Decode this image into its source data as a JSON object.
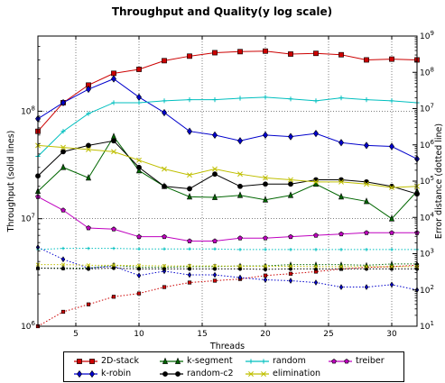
{
  "chart_data": {
    "type": "line",
    "title": "Throughput and Quality(y log scale)",
    "xlabel": "Threads",
    "ylabel_left": "Throughput (solid lines)",
    "ylabel_right": "Error distance (dotted line)",
    "xlim": [
      2,
      32
    ],
    "xticks": [
      "5",
      "10",
      "15",
      "20",
      "25",
      "30"
    ],
    "ylim_left": [
      1000000,
      500000000
    ],
    "ylim_right": [
      10,
      1000000000
    ],
    "yscale": "log",
    "left_ticks": [
      {
        "value": 1000000,
        "base": "10",
        "exp": "6"
      },
      {
        "value": 10000000,
        "base": "10",
        "exp": "7"
      },
      {
        "value": 100000000,
        "base": "10",
        "exp": "8"
      }
    ],
    "right_ticks": [
      {
        "value": 10,
        "base": "10",
        "exp": "1"
      },
      {
        "value": 100,
        "base": "10",
        "exp": "2"
      },
      {
        "value": 1000,
        "base": "10",
        "exp": "3"
      },
      {
        "value": 10000,
        "base": "10",
        "exp": "4"
      },
      {
        "value": 100000,
        "base": "10",
        "exp": "5"
      },
      {
        "value": 1000000,
        "base": "10",
        "exp": "6"
      },
      {
        "value": 10000000,
        "base": "10",
        "exp": "7"
      },
      {
        "value": 100000000,
        "base": "10",
        "exp": "8"
      },
      {
        "value": 1000000000,
        "base": "10",
        "exp": "9"
      }
    ],
    "grid": true,
    "legend_position": "bottom",
    "x": [
      2,
      4,
      6,
      8,
      10,
      12,
      14,
      16,
      18,
      20,
      22,
      24,
      26,
      28,
      30,
      32
    ],
    "series": [
      {
        "name": "2D-stack",
        "color": "#cc0000",
        "marker": "square",
        "throughput": [
          65000000,
          120000000,
          175000000,
          225000000,
          245000000,
          295000000,
          325000000,
          350000000,
          358000000,
          362000000,
          340000000,
          345000000,
          335000000,
          300000000,
          305000000,
          300000000
        ],
        "error": [
          10,
          25,
          40,
          65,
          80,
          120,
          160,
          180,
          200,
          250,
          280,
          320,
          380,
          420,
          440,
          480
        ]
      },
      {
        "name": "k-robin",
        "color": "#0000cc",
        "marker": "diamond",
        "throughput": [
          85000000,
          120000000,
          160000000,
          200000000,
          135000000,
          97000000,
          65000000,
          60000000,
          53000000,
          60000000,
          58000000,
          62000000,
          51000000,
          48000000,
          47000000,
          36000000
        ],
        "error": [
          1500,
          700,
          400,
          450,
          250,
          330,
          260,
          260,
          220,
          190,
          180,
          160,
          120,
          120,
          140,
          100
        ]
      },
      {
        "name": "k-segment",
        "color": "#006600",
        "marker": "triangle",
        "throughput": [
          18000000,
          30000000,
          24000000,
          58000000,
          28000000,
          20000000,
          16000000,
          15800000,
          16500000,
          15000000,
          16500000,
          21000000,
          16000000,
          14500000,
          10000000,
          18000000
        ],
        "error": [
          400,
          400,
          400,
          480,
          420,
          420,
          440,
          440,
          460,
          460,
          500,
          500,
          500,
          480,
          520,
          520
        ]
      },
      {
        "name": "random-c2",
        "color": "#000000",
        "marker": "circle",
        "throughput": [
          25000000,
          42000000,
          48000000,
          53000000,
          30000000,
          20000000,
          19000000,
          26000000,
          20000000,
          21000000,
          21000000,
          23000000,
          23000000,
          22000000,
          20000000,
          17000000
        ],
        "error": [
          400,
          390,
          380,
          400,
          380,
          380,
          380,
          380,
          380,
          370,
          380,
          380,
          380,
          380,
          380,
          380
        ]
      },
      {
        "name": "random",
        "color": "#00bfbf",
        "marker": "plus",
        "throughput": [
          38000000,
          65000000,
          95000000,
          120000000,
          120000000,
          125000000,
          128000000,
          128000000,
          132000000,
          135000000,
          130000000,
          125000000,
          133000000,
          128000000,
          125000000,
          120000000
        ],
        "error": [
          1300,
          1400,
          1400,
          1400,
          1350,
          1350,
          1350,
          1350,
          1300,
          1300,
          1300,
          1300,
          1300,
          1300,
          1300,
          1300
        ]
      },
      {
        "name": "elimination",
        "color": "#bfbf00",
        "marker": "x",
        "throughput": [
          48000000,
          46000000,
          44000000,
          42000000,
          35000000,
          29000000,
          25500000,
          29000000,
          26000000,
          24000000,
          23000000,
          22000000,
          22000000,
          21000000,
          19500000,
          20000000
        ],
        "error": [
          500,
          500,
          480,
          480,
          470,
          460,
          460,
          460,
          450,
          450,
          450,
          440,
          440,
          440,
          440,
          440
        ]
      },
      {
        "name": "treiber",
        "color": "#bf00bf",
        "marker": "pentagon",
        "throughput": [
          16000000,
          12000000,
          8200000,
          8000000,
          6800000,
          6800000,
          6200000,
          6200000,
          6600000,
          6600000,
          6800000,
          7000000,
          7200000,
          7400000,
          7400000,
          7400000
        ],
        "error": []
      }
    ]
  }
}
